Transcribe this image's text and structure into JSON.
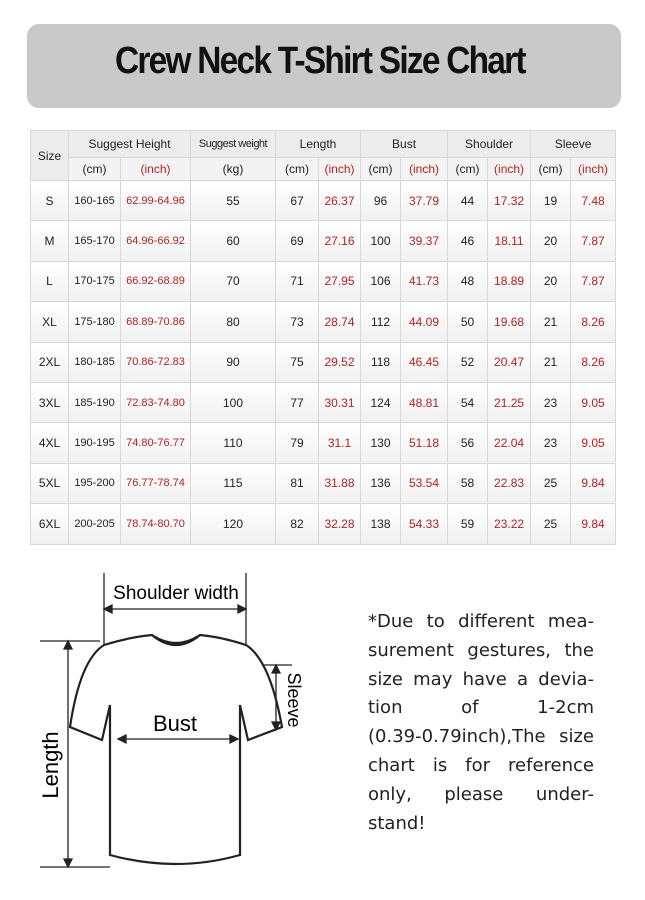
{
  "header": {
    "title": "Crew Neck T-Shirt Size Chart"
  },
  "table": {
    "header": {
      "size": "Size",
      "groups": [
        "Suggest Height",
        "Suggest weight",
        "Length",
        "Bust",
        "Shoulder",
        "Sleeve"
      ],
      "units": [
        "(cm)",
        "(inch)",
        "(kg)",
        "(cm)",
        "(inch)",
        "(cm)",
        "(inch)",
        "(cm)",
        "(inch)",
        "(cm)",
        "(inch)"
      ]
    },
    "rows": [
      [
        "S",
        "160-165",
        "62.99-64.96",
        "55",
        "67",
        "26.37",
        "96",
        "37.79",
        "44",
        "17.32",
        "19",
        "7.48"
      ],
      [
        "M",
        "165-170",
        "64.96-66.92",
        "60",
        "69",
        "27.16",
        "100",
        "39.37",
        "46",
        "18.11",
        "20",
        "7.87"
      ],
      [
        "L",
        "170-175",
        "66.92-68.89",
        "70",
        "71",
        "27.95",
        "106",
        "41.73",
        "48",
        "18.89",
        "20",
        "7.87"
      ],
      [
        "XL",
        "175-180",
        "68.89-70.86",
        "80",
        "73",
        "28.74",
        "112",
        "44.09",
        "50",
        "19.68",
        "21",
        "8.26"
      ],
      [
        "2XL",
        "180-185",
        "70.86-72.83",
        "90",
        "75",
        "29.52",
        "118",
        "46.45",
        "52",
        "20.47",
        "21",
        "8.26"
      ],
      [
        "3XL",
        "185-190",
        "72.83-74.80",
        "100",
        "77",
        "30.31",
        "124",
        "48.81",
        "54",
        "21.25",
        "23",
        "9.05"
      ],
      [
        "4XL",
        "190-195",
        "74.80-76.77",
        "110",
        "79",
        "31.1",
        "130",
        "51.18",
        "56",
        "22.04",
        "23",
        "9.05"
      ],
      [
        "5XL",
        "195-200",
        "76.77-78.74",
        "115",
        "81",
        "31.88",
        "136",
        "53.54",
        "58",
        "22.83",
        "25",
        "9.84"
      ],
      [
        "6XL",
        "200-205",
        "78.74-80.70",
        "120",
        "82",
        "32.28",
        "138",
        "54.33",
        "59",
        "23.22",
        "25",
        "9.84"
      ]
    ]
  },
  "diagram": {
    "shoulder": "Shoulder width",
    "bust": "Bust",
    "sleeve": "Sleeve",
    "length": "Length"
  },
  "note": {
    "lines": [
      "*Due to different mea-",
      "surement gestures, the",
      "size may have a devia-",
      "tion of 1-2cm",
      "(0.39-0.79inch),The size",
      "chart is for reference",
      "only, please under-",
      "stand!"
    ]
  }
}
